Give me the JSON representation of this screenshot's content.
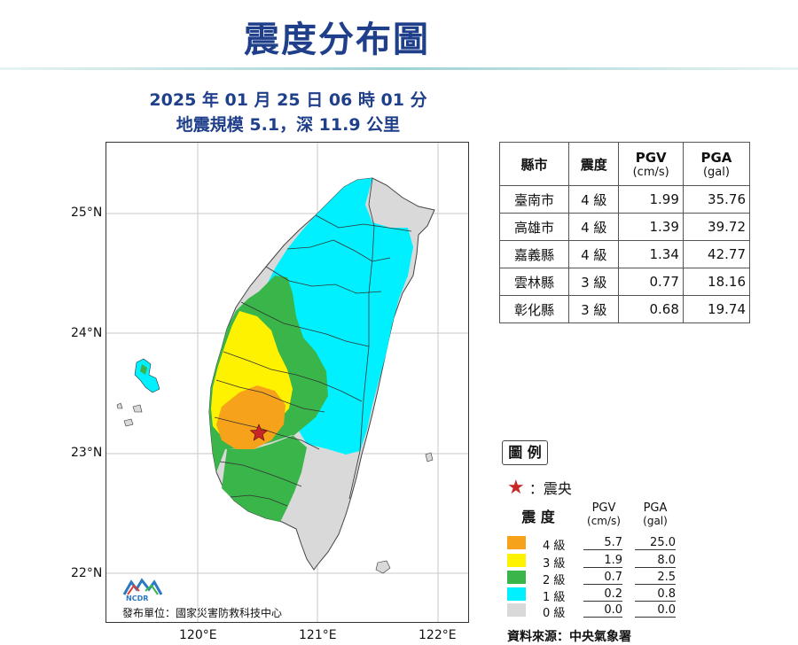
{
  "title": "震度分布圖",
  "subtitle": {
    "datetime": "2025 年 01 月 25 日 06 時 01 分",
    "magnitude": "地震規模 5.1，深 11.9 公里"
  },
  "map": {
    "lat_labels": [
      "25°N",
      "24°N",
      "23°N",
      "22°N"
    ],
    "lon_labels": [
      "120°E",
      "121°E",
      "122°E"
    ],
    "credit": "發布單位：國家災害防救科技中心",
    "logo_text": "NCDR"
  },
  "table": {
    "headers": {
      "county": "縣市",
      "intensity": "震度",
      "pgv": "PGV",
      "pgv_unit": "(cm/s)",
      "pga": "PGA",
      "pga_unit": "(gal)"
    },
    "rows": [
      {
        "county": "臺南市",
        "intensity": "4 級",
        "pgv": "1.99",
        "pga": "35.76"
      },
      {
        "county": "高雄市",
        "intensity": "4 級",
        "pgv": "1.39",
        "pga": "39.72"
      },
      {
        "county": "嘉義縣",
        "intensity": "4 級",
        "pgv": "1.34",
        "pga": "42.77"
      },
      {
        "county": "雲林縣",
        "intensity": "3 級",
        "pgv": "0.77",
        "pga": "18.16"
      },
      {
        "county": "彰化縣",
        "intensity": "3 級",
        "pgv": "0.68",
        "pga": "19.74"
      }
    ]
  },
  "legend": {
    "title": "圖 例",
    "epicenter_label": "：震央",
    "headers": {
      "intensity": "震 度",
      "pgv": "PGV",
      "pgv_unit": "(cm/s)",
      "pga": "PGA",
      "pga_unit": "(gal)"
    },
    "levels": [
      {
        "label": "4 級",
        "pgv": "5.7",
        "pga": "25.0",
        "color": "#f7a21b"
      },
      {
        "label": "3 級",
        "pgv": "1.9",
        "pga": "8.0",
        "color": "#fff200"
      },
      {
        "label": "2 級",
        "pgv": "0.7",
        "pga": "2.5",
        "color": "#39b54a"
      },
      {
        "label": "1 級",
        "pgv": "0.2",
        "pga": "0.8",
        "color": "#00f0ff"
      },
      {
        "label": "0 級",
        "pgv": "0.0",
        "pga": "0.0",
        "color": "#d9d9d9"
      }
    ]
  },
  "source": "資料來源：中央氣象署",
  "colors": {
    "title": "#1f3f8a",
    "epicenter": "#c62828"
  }
}
